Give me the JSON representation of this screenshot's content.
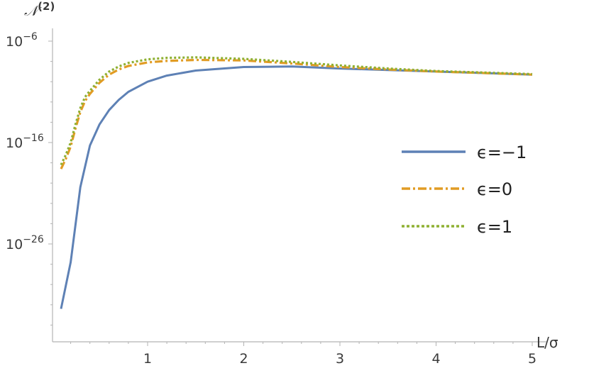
{
  "chart_data": {
    "type": "line",
    "xlabel": "L/σ",
    "ylabel": "𝒩(2)",
    "ylabel_sup": "(2)",
    "y_scale": "log",
    "xlim": [
      0.0,
      5.1
    ],
    "ylim_log10": [
      -34,
      -5
    ],
    "x_ticks": [
      {
        "value": 1,
        "label": "1"
      },
      {
        "value": 2,
        "label": "2"
      },
      {
        "value": 3,
        "label": "3"
      },
      {
        "value": 4,
        "label": "4"
      },
      {
        "value": 5,
        "label": "5"
      }
    ],
    "y_ticks": [
      {
        "log10": -6,
        "base": "10",
        "exp": "−6"
      },
      {
        "log10": -16,
        "base": "10",
        "exp": "−16"
      },
      {
        "log10": -26,
        "base": "10",
        "exp": "−26"
      }
    ],
    "legend_position": "right",
    "series": [
      {
        "name": "ϵ=−1",
        "color": "#5e81b5",
        "style": "solid",
        "x": [
          0.1,
          0.2,
          0.3,
          0.4,
          0.5,
          0.6,
          0.7,
          0.8,
          1.0,
          1.2,
          1.5,
          2.0,
          2.5,
          3.0,
          3.5,
          4.0,
          4.5,
          5.0
        ],
        "log10y": [
          -32.4,
          -27.8,
          -20.4,
          -16.3,
          -14.2,
          -12.8,
          -11.8,
          -11.0,
          -10.0,
          -9.4,
          -8.9,
          -8.55,
          -8.5,
          -8.7,
          -8.85,
          -9.0,
          -9.15,
          -9.3
        ]
      },
      {
        "name": "ϵ=0",
        "color": "#e19c24",
        "style": "dashdot",
        "x": [
          0.1,
          0.15,
          0.2,
          0.25,
          0.3,
          0.35,
          0.4,
          0.5,
          0.6,
          0.7,
          0.8,
          1.0,
          1.2,
          1.5,
          2.0,
          2.5,
          3.0,
          3.5,
          4.0,
          4.5,
          5.0
        ],
        "log10y": [
          -18.6,
          -17.6,
          -16.4,
          -14.6,
          -13.0,
          -11.9,
          -11.2,
          -10.1,
          -9.3,
          -8.8,
          -8.45,
          -8.1,
          -7.95,
          -7.85,
          -7.9,
          -8.2,
          -8.55,
          -8.8,
          -9.0,
          -9.15,
          -9.3
        ]
      },
      {
        "name": "ϵ=1",
        "color": "#8fb032",
        "style": "dotted",
        "x": [
          0.1,
          0.15,
          0.2,
          0.25,
          0.3,
          0.35,
          0.4,
          0.5,
          0.6,
          0.7,
          0.8,
          1.0,
          1.2,
          1.5,
          2.0,
          2.5,
          3.0,
          3.5,
          4.0,
          4.5,
          5.0
        ],
        "log10y": [
          -18.2,
          -17.2,
          -16.0,
          -14.2,
          -12.6,
          -11.5,
          -10.9,
          -9.8,
          -9.0,
          -8.5,
          -8.15,
          -7.8,
          -7.65,
          -7.6,
          -7.75,
          -8.05,
          -8.4,
          -8.7,
          -8.95,
          -9.1,
          -9.25
        ]
      }
    ]
  }
}
